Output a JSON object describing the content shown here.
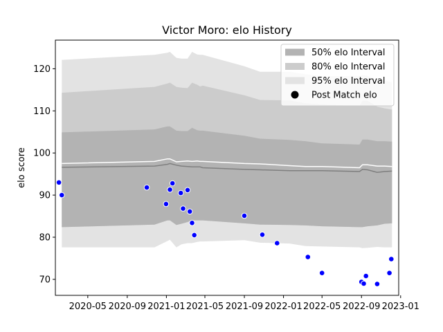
{
  "chart_data": {
    "type": "area",
    "title": "Victor Moro: elo History",
    "xlabel": "",
    "ylabel": "elo score",
    "xlim": [
      "2020-01-21",
      "2022-12-26"
    ],
    "ylim": [
      66.2,
      126.8
    ],
    "x_ticks": [
      {
        "date": "2020-05-01",
        "label": "2020-05"
      },
      {
        "date": "2020-09-01",
        "label": "2020-09"
      },
      {
        "date": "2021-01-01",
        "label": "2021-01"
      },
      {
        "date": "2021-05-01",
        "label": "2021-05"
      },
      {
        "date": "2021-09-01",
        "label": "2021-09"
      },
      {
        "date": "2022-01-01",
        "label": "2022-01"
      },
      {
        "date": "2022-05-01",
        "label": "2022-05"
      },
      {
        "date": "2022-09-01",
        "label": "2022-09"
      },
      {
        "date": "2023-01-01",
        "label": "2023-01"
      }
    ],
    "y_ticks": [
      70,
      80,
      90,
      100,
      110,
      120
    ],
    "legend": {
      "placement": "top-right",
      "entries": [
        {
          "label": "50% elo Interval",
          "color": "#b3b3b3",
          "kind": "patch"
        },
        {
          "label": "80% elo Interval",
          "color": "#cccccc",
          "kind": "patch"
        },
        {
          "label": "95% elo Interval",
          "color": "#e3e3e3",
          "kind": "patch"
        },
        {
          "label": "Post Match elo",
          "color": "#000000",
          "kind": "marker"
        }
      ]
    },
    "bands": {
      "x": [
        "2020-02-10",
        "2020-11-25",
        "2021-01-04",
        "2021-01-12",
        "2021-02-01",
        "2021-02-17",
        "2021-03-08",
        "2021-03-22",
        "2021-04-07",
        "2021-04-16",
        "2021-04-24",
        "2021-09-01",
        "2021-10-20",
        "2022-01-20",
        "2022-03-10",
        "2022-05-01",
        "2022-08-26",
        "2022-09-04",
        "2022-09-20",
        "2022-10-20",
        "2022-11-12",
        "2022-12-05"
      ],
      "p97_5": [
        122.1,
        123.3,
        123.8,
        124.0,
        122.6,
        122.4,
        122.4,
        124.0,
        123.4,
        123.3,
        123.3,
        120.6,
        119.3,
        119.3,
        118.7,
        118.2,
        118.3,
        118.5,
        118.3,
        117.5,
        117.2,
        116.8
      ],
      "p90": [
        114.3,
        115.7,
        116.5,
        116.7,
        115.7,
        115.5,
        115.4,
        116.7,
        116.2,
        115.8,
        116.0,
        113.7,
        112.6,
        112.5,
        111.8,
        111.5,
        111.2,
        112.4,
        112.4,
        111.0,
        110.6,
        110.3
      ],
      "p75": [
        104.9,
        105.6,
        106.3,
        106.3,
        105.3,
        105.2,
        105.2,
        106.0,
        105.4,
        105.3,
        105.3,
        104.1,
        103.4,
        103.1,
        102.8,
        102.3,
        102.0,
        103.2,
        103.2,
        102.8,
        102.8,
        102.7
      ],
      "median": [
        96.6,
        96.9,
        97.3,
        97.5,
        97.1,
        96.9,
        96.8,
        96.7,
        96.7,
        96.7,
        96.5,
        96.1,
        96.0,
        95.8,
        95.8,
        95.8,
        95.6,
        96.1,
        96.0,
        95.4,
        95.6,
        95.7
      ],
      "mean": [
        97.5,
        98.0,
        98.6,
        98.6,
        97.9,
        98.0,
        98.1,
        98.0,
        98.1,
        98.0,
        98.0,
        97.5,
        97.4,
        97.0,
        96.8,
        96.8,
        96.5,
        97.2,
        97.2,
        96.9,
        96.9,
        96.8
      ],
      "p25": [
        82.4,
        83.0,
        84.0,
        84.0,
        82.9,
        83.2,
        83.6,
        84.0,
        84.0,
        84.0,
        84.0,
        83.3,
        83.0,
        82.9,
        82.8,
        82.6,
        82.4,
        82.4,
        82.6,
        82.8,
        83.2,
        83.3
      ],
      "p10": [
        77.6,
        77.6,
        79.1,
        79.4,
        77.6,
        78.3,
        78.6,
        78.6,
        78.9,
        79.0,
        79.0,
        79.3,
        78.7,
        78.5,
        77.9,
        77.8,
        77.6,
        77.4,
        77.5,
        77.7,
        77.6,
        77.6
      ]
    },
    "points": [
      {
        "x": "2020-02-01",
        "y": 93.0
      },
      {
        "x": "2020-02-10",
        "y": 90.0
      },
      {
        "x": "2020-11-01",
        "y": 91.8
      },
      {
        "x": "2020-12-31",
        "y": 87.9
      },
      {
        "x": "2021-01-12",
        "y": 91.3
      },
      {
        "x": "2021-01-20",
        "y": 92.8
      },
      {
        "x": "2021-02-15",
        "y": 90.5
      },
      {
        "x": "2021-02-22",
        "y": 86.8
      },
      {
        "x": "2021-03-08",
        "y": 91.2
      },
      {
        "x": "2021-03-15",
        "y": 86.1
      },
      {
        "x": "2021-03-22",
        "y": 83.4
      },
      {
        "x": "2021-03-29",
        "y": 80.5
      },
      {
        "x": "2021-09-01",
        "y": 85.1
      },
      {
        "x": "2021-10-27",
        "y": 80.6
      },
      {
        "x": "2021-12-12",
        "y": 78.6
      },
      {
        "x": "2022-03-18",
        "y": 75.3
      },
      {
        "x": "2022-05-01",
        "y": 71.5
      },
      {
        "x": "2022-09-01",
        "y": 69.4
      },
      {
        "x": "2022-09-08",
        "y": 69.0
      },
      {
        "x": "2022-09-15",
        "y": 70.8
      },
      {
        "x": "2022-10-20",
        "y": 68.9
      },
      {
        "x": "2022-11-27",
        "y": 71.5
      },
      {
        "x": "2022-12-03",
        "y": 74.8
      }
    ],
    "colors": {
      "band95": "#e3e3e3",
      "band80": "#cccccc",
      "band50": "#b3b3b3",
      "median": "#7f7f7f",
      "mean": "#ffffff",
      "point_fill": "#0000ff",
      "point_edge": "#ffffff"
    },
    "grid": false
  }
}
